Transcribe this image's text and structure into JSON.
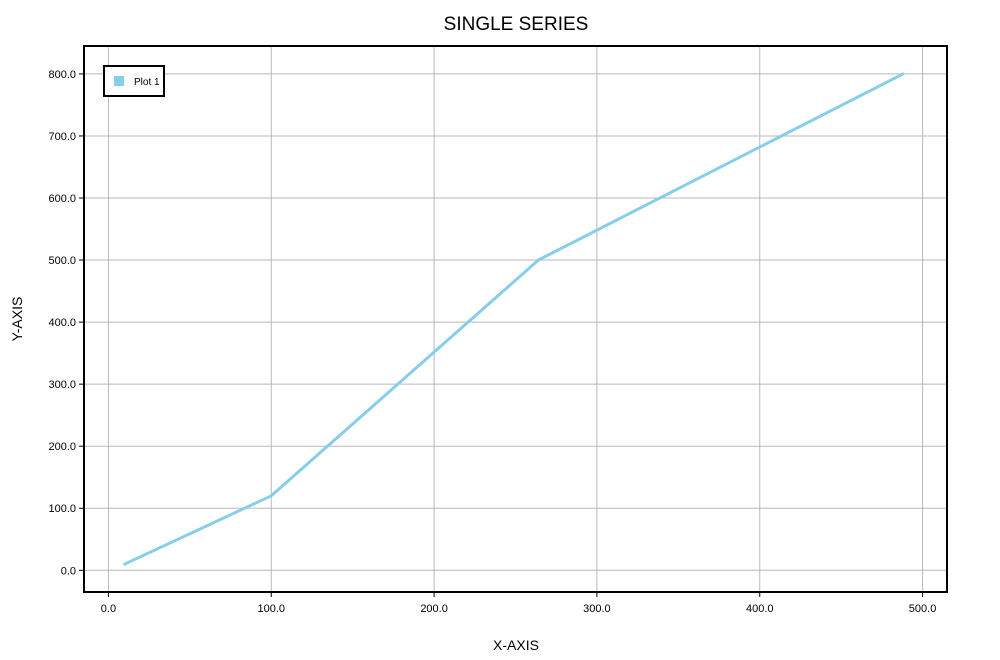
{
  "chart_data": {
    "type": "line",
    "title": "SINGLE SERIES",
    "xlabel": "X-AXIS",
    "ylabel": "Y-AXIS",
    "xlim": [
      -15,
      515
    ],
    "ylim": [
      -35,
      845
    ],
    "x_ticks": [
      0,
      100,
      200,
      300,
      400,
      500
    ],
    "y_ticks": [
      0,
      100,
      200,
      300,
      400,
      500,
      600,
      700,
      800
    ],
    "x_tick_labels": [
      "0.0",
      "100.0",
      "200.0",
      "300.0",
      "400.0",
      "500.0"
    ],
    "y_tick_labels": [
      "0.0",
      "100.0",
      "200.0",
      "300.0",
      "400.0",
      "500.0",
      "600.0",
      "700.0",
      "800.0"
    ],
    "grid": true,
    "legend_position": "top-left",
    "series": [
      {
        "name": "Plot 1",
        "color": "#87CEEB",
        "x": [
          10,
          100,
          264,
          488
        ],
        "y": [
          10,
          120,
          500,
          800
        ]
      }
    ]
  }
}
